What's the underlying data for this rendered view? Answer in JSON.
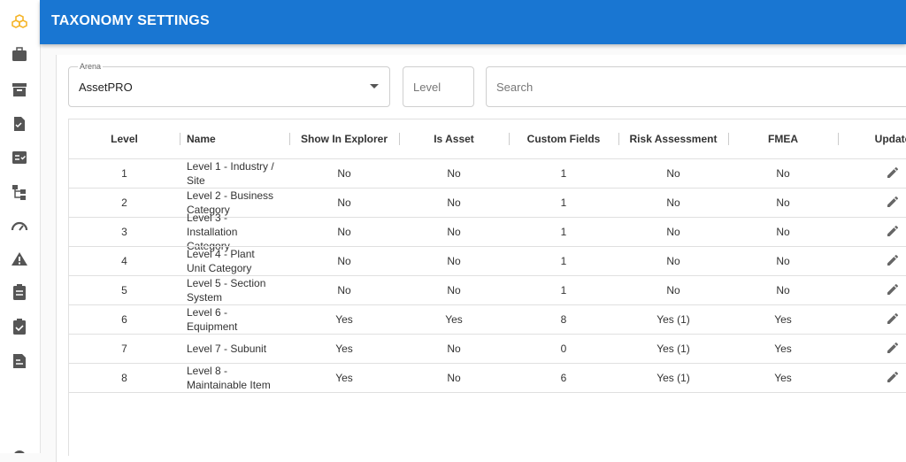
{
  "header": {
    "title": "TAXONOMY SETTINGS"
  },
  "filters": {
    "arena_label": "Arena",
    "arena_value": "AssetPRO",
    "level_placeholder": "Level",
    "search_placeholder": "Search"
  },
  "table": {
    "columns": [
      "Level",
      "Name",
      "Show In Explorer",
      "Is Asset",
      "Custom Fields",
      "Risk Assessment",
      "FMEA",
      "Update"
    ],
    "rows": [
      [
        "1",
        "Level 1 - Industry / Site",
        "No",
        "No",
        "1",
        "No",
        "No"
      ],
      [
        "2",
        "Level 2 - Business Category",
        "No",
        "No",
        "1",
        "No",
        "No"
      ],
      [
        "3",
        "Level 3 - Installation Category",
        "No",
        "No",
        "1",
        "No",
        "No"
      ],
      [
        "4",
        "Level 4 - Plant Unit Category",
        "No",
        "No",
        "1",
        "No",
        "No"
      ],
      [
        "5",
        "Level 5 - Section System",
        "No",
        "No",
        "1",
        "No",
        "No"
      ],
      [
        "6",
        "Level 6 - Equipment",
        "Yes",
        "Yes",
        "8",
        "Yes (1)",
        "Yes"
      ],
      [
        "7",
        "Level 7 - Subunit",
        "Yes",
        "No",
        "0",
        "Yes (1)",
        "Yes"
      ],
      [
        "8",
        "Level 8 - Maintainable Item",
        "Yes",
        "No",
        "6",
        "Yes (1)",
        "Yes"
      ]
    ]
  }
}
